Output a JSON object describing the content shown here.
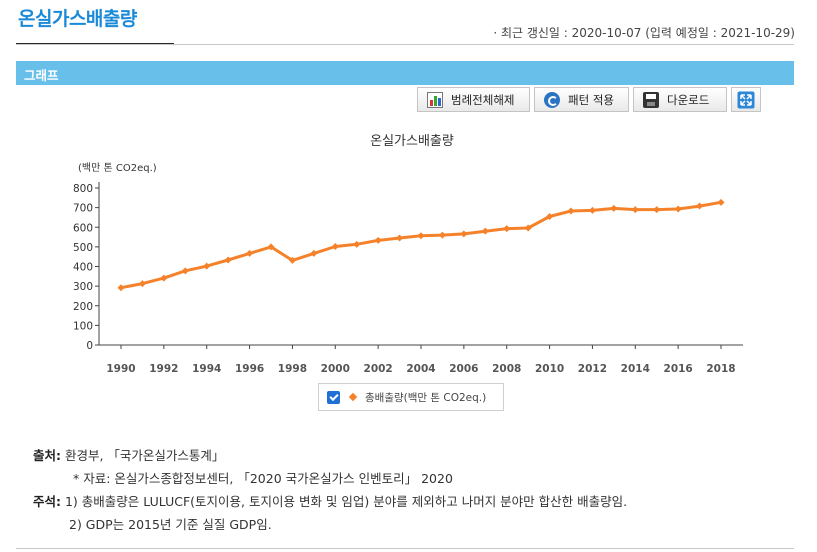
{
  "page": {
    "title": "온실가스배출량",
    "update_info": "· 최근 갱신일 : 2020-10-07 (입력 예정일 : 2021-10-29)"
  },
  "section": {
    "title": "그래프"
  },
  "toolbar": {
    "legend_all_off": "범례전체해제",
    "apply_pattern": "패턴 적용",
    "download": "다운로드",
    "icons": [
      "bar-chart-icon",
      "refresh-icon",
      "save-disk-icon",
      "expand-icon"
    ]
  },
  "chart_data": {
    "type": "line",
    "title": "온실가스배출량",
    "ylabel": "(백만 톤 CO2eq.)",
    "xlabel": "",
    "x_ticks": [
      "1990",
      "1992",
      "1994",
      "1996",
      "1998",
      "2000",
      "2002",
      "2004",
      "2006",
      "2008",
      "2010",
      "2012",
      "2014",
      "2016",
      "2018"
    ],
    "y_ticks": [
      "0",
      "100",
      "200",
      "300",
      "400",
      "500",
      "600",
      "700",
      "800"
    ],
    "ylim": [
      0,
      800
    ],
    "grid": false,
    "legend_position": "bottom",
    "series": [
      {
        "name": "총배출량(백만 톤 CO2eq.)",
        "color": "#f5822a",
        "x": [
          1990,
          1991,
          1992,
          1993,
          1994,
          1995,
          1996,
          1997,
          1998,
          1999,
          2000,
          2001,
          2002,
          2003,
          2004,
          2005,
          2006,
          2007,
          2008,
          2009,
          2010,
          2011,
          2012,
          2013,
          2014,
          2015,
          2016,
          2017,
          2018
        ],
        "values": [
          292,
          313,
          341,
          378,
          402,
          433,
          467,
          500,
          431,
          467,
          502,
          513,
          533,
          545,
          557,
          560,
          566,
          580,
          593,
          596,
          655,
          683,
          686,
          696,
          690,
          690,
          693,
          708,
          727
        ]
      }
    ]
  },
  "notes": {
    "source_label": "출처:",
    "source": "환경부, 「국가온실가스통계」",
    "data_source": "* 자료: 온실가스종합정보센터, 「2020 국가온실가스 인벤토리」 2020",
    "remarks_label": "주석:",
    "remark1": "1) 총배출량은 LULUCF(토지이용, 토지이용 변화 및 임업) 분야를 제외하고 나머지 분야만 합산한 배출량임.",
    "remark2": "2) GDP는 2015년 기준 실질 GDP임."
  }
}
